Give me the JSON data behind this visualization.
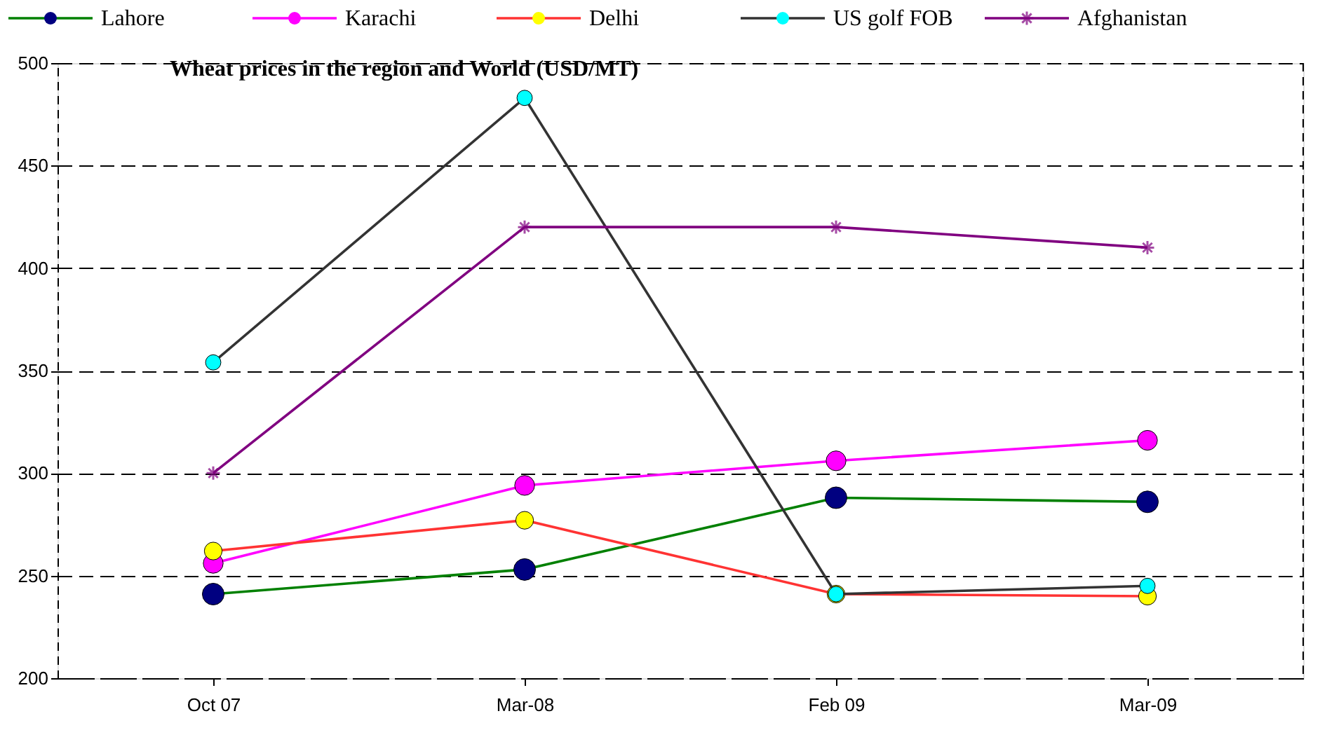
{
  "chart_data": {
    "type": "line",
    "title": "Wheat prices in the region and World (USD/MT)",
    "categories": [
      "Oct 07",
      "Mar-08",
      "Feb 09",
      "Mar-09"
    ],
    "ylim": [
      200,
      500
    ],
    "yticks": [
      200,
      250,
      300,
      350,
      400,
      450,
      500
    ],
    "grid": "y",
    "legend": "top",
    "marker": "circle",
    "series": [
      {
        "name": "Lahore",
        "color": "#008000",
        "colors": [
          "#000080",
          "#000080",
          "#000080",
          "#000080"
        ],
        "values": [
          241,
          253,
          288,
          286
        ]
      },
      {
        "name": "Karachi",
        "color": "#ff00ff",
        "colors": [
          "#ff00ff",
          "#ff00ff",
          "#ff00ff",
          "#ff00ff"
        ],
        "values": [
          256,
          294,
          306,
          316
        ]
      },
      {
        "name": "Delhi",
        "color": "#ff3333",
        "colors": [
          "#ffff00",
          "#ffff00",
          "#ffff00",
          "#ffff00"
        ],
        "values": [
          262,
          277,
          241,
          240
        ]
      },
      {
        "name": "US golf FOB",
        "color": "#333333",
        "colors": [
          "#00ffff",
          "#00ffff",
          "#00ffff",
          "#00ffff"
        ],
        "values": [
          354,
          483,
          241,
          245
        ]
      },
      {
        "name": "Afghanistan",
        "color": "#800080",
        "marker": "cross",
        "colors": [
          "#800080",
          "#800080",
          "#800080",
          "#800080"
        ],
        "values": [
          300,
          420,
          420,
          410
        ]
      }
    ]
  }
}
